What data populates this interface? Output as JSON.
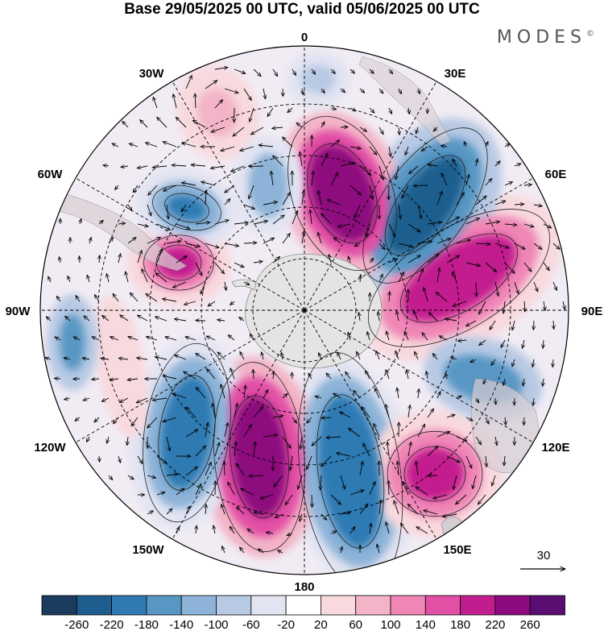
{
  "title": "Base 29/05/2025 00 UTC, valid 05/06/2025 00 UTC",
  "brand": {
    "name": "MODES",
    "mark": "©"
  },
  "longitude_labels": [
    "0",
    "30E",
    "60E",
    "90E",
    "120E",
    "150E",
    "180",
    "150W",
    "120W",
    "90W",
    "60W",
    "30W"
  ],
  "reference_vector": {
    "label": "30"
  },
  "colorbar": {
    "ticks": [
      "-260",
      "-220",
      "-180",
      "-140",
      "-100",
      "-60",
      "-20",
      "20",
      "60",
      "100",
      "140",
      "180",
      "220",
      "260"
    ],
    "colors": [
      "#1b3c5e",
      "#1e5e8f",
      "#2f7ab3",
      "#5897c4",
      "#8db3d8",
      "#b8c9e4",
      "#e2e4f2",
      "#ffffff",
      "#f8d9de",
      "#f3b4c7",
      "#ef86b6",
      "#e250a5",
      "#c21d8e",
      "#8d0a7e",
      "#5b0e72"
    ]
  }
}
